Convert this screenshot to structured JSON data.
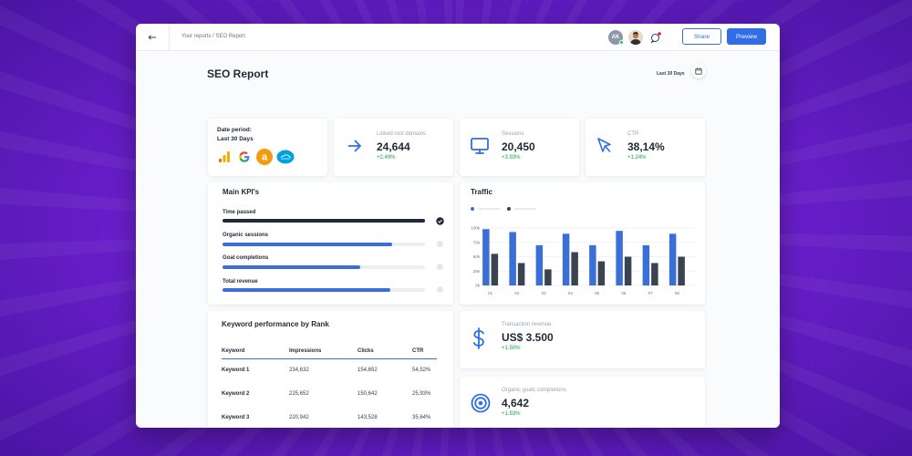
{
  "header": {
    "breadcrumb": "Your reports / SEO Report",
    "avatar_initials": "AK",
    "share_label": "Share",
    "preview_label": "Preview"
  },
  "page": {
    "title": "SEO Report",
    "date_filter": "Last 30 Days"
  },
  "date_card": {
    "label": "Date period:",
    "value": "Last 30 Days",
    "sources": [
      "google-analytics-icon",
      "google-icon",
      "ahrefs-icon",
      "salesforce-icon"
    ]
  },
  "metrics": [
    {
      "label": "Linked root domains",
      "value": "24,644",
      "delta": "+2.49%",
      "icon": "arrow-right-icon"
    },
    {
      "label": "Sessions",
      "value": "20,450",
      "delta": "+3.93%",
      "icon": "monitor-icon"
    },
    {
      "label": "CTR",
      "value": "38,14%",
      "delta": "+1.24%",
      "icon": "cursor-icon"
    }
  ],
  "main_kpis": {
    "title": "Main KPI's",
    "items": [
      {
        "label": "Time passed",
        "progress": 1.0,
        "color": "#1f2937",
        "done": true
      },
      {
        "label": "Organic sessions",
        "progress": 0.84,
        "color": "#3b6fd8",
        "done": false
      },
      {
        "label": "Goal completions",
        "progress": 0.68,
        "color": "#3b6fd8",
        "done": false
      },
      {
        "label": "Total revenue",
        "progress": 0.83,
        "color": "#3b6fd8",
        "done": false
      }
    ]
  },
  "traffic": {
    "title": "Traffic"
  },
  "chart_data": {
    "type": "bar",
    "title": "Traffic",
    "categories": [
      "01",
      "02",
      "03",
      "04",
      "05",
      "06",
      "07",
      "08"
    ],
    "yticks": [
      "100k",
      "75k",
      "50k",
      "25k",
      "0k"
    ],
    "ylim": [
      0,
      100000
    ],
    "grid": true,
    "series": [
      {
        "values": [
          98000,
          93000,
          70000,
          90000,
          70000,
          95000,
          70000,
          90000
        ],
        "color": "#3b6fd8"
      },
      {
        "values": [
          55000,
          39000,
          28000,
          58000,
          42000,
          50000,
          39000,
          50000
        ],
        "color": "#3a4350"
      }
    ]
  },
  "keywords": {
    "title": "Keyword performance by Rank",
    "columns": [
      "Keyword",
      "Impressions",
      "Clicks",
      "CTR"
    ],
    "rows": [
      [
        "Keyword 1",
        "234,632",
        "154,652",
        "54,52%"
      ],
      [
        "Keyword 2",
        "225,652",
        "150,642",
        "25,93%"
      ],
      [
        "Keyword 3",
        "220,942",
        "143,528",
        "35,64%"
      ]
    ]
  },
  "transaction": {
    "label": "Transaction revenue",
    "value": "US$ 3.500",
    "delta": "+1.50%",
    "icon": "dollar-icon"
  },
  "goals": {
    "label": "Organic goals completions",
    "value": "4,642",
    "delta": "+1.93%",
    "icon": "target-icon"
  },
  "colors": {
    "accent": "#2f6ee6",
    "positive": "#16a34a",
    "dark_bar": "#3a4350"
  }
}
